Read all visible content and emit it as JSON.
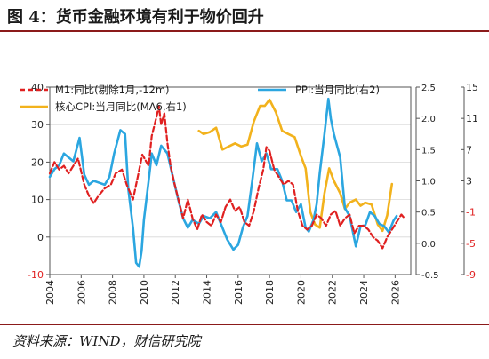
{
  "figure": {
    "title": "图 4：货币金融环境有利于物价回升",
    "source": "资料来源：WIND，财信研究院"
  },
  "chart_data": {
    "type": "line",
    "legend": [
      {
        "name": "M1:同比(剔除1月,-12m)",
        "color": "#e02020",
        "style": "dashed",
        "axis": "left"
      },
      {
        "name": "PPI:当月同比(右2)",
        "color": "#2ba6e0",
        "style": "solid",
        "axis": "right2"
      },
      {
        "name": "核心CPI:当月同比(MA6,右1)",
        "color": "#f2b21c",
        "style": "solid",
        "axis": "right1"
      }
    ],
    "x_ticks": [
      "2004",
      "2006",
      "2008",
      "2010",
      "2012",
      "2014",
      "2016",
      "2018",
      "2020",
      "2022",
      "2024",
      "2026"
    ],
    "x_range": [
      2004,
      2027
    ],
    "axes": {
      "left": {
        "min": -10,
        "max": 40,
        "ticks": [
          "-10",
          "0",
          "10",
          "20",
          "30",
          "40"
        ],
        "neg_color": "#e02020"
      },
      "right1": {
        "min": -0.5,
        "max": 2.5,
        "ticks": [
          "-0.5",
          "0.0",
          "0.5",
          "1.0",
          "1.5",
          "2.0",
          "2.5"
        ]
      },
      "right2": {
        "min": -9,
        "max": 15,
        "ticks": [
          "-9",
          "-5",
          "-1",
          "3",
          "7",
          "11",
          "15"
        ],
        "neg_color": "#e02020"
      }
    },
    "series": {
      "m1": [
        [
          2004.0,
          17
        ],
        [
          2004.3,
          20
        ],
        [
          2004.6,
          18
        ],
        [
          2004.9,
          19
        ],
        [
          2005.2,
          17
        ],
        [
          2005.5,
          19
        ],
        [
          2005.8,
          21
        ],
        [
          2006.2,
          14
        ],
        [
          2006.5,
          11
        ],
        [
          2006.8,
          9
        ],
        [
          2007.1,
          11
        ],
        [
          2007.5,
          13
        ],
        [
          2007.9,
          14
        ],
        [
          2008.2,
          17
        ],
        [
          2008.6,
          18
        ],
        [
          2008.9,
          14
        ],
        [
          2009.3,
          10
        ],
        [
          2009.6,
          16
        ],
        [
          2009.9,
          22
        ],
        [
          2010.3,
          19
        ],
        [
          2010.5,
          27
        ],
        [
          2010.8,
          32
        ],
        [
          2010.95,
          35
        ],
        [
          2011.1,
          30
        ],
        [
          2011.3,
          33
        ],
        [
          2011.5,
          25
        ],
        [
          2011.7,
          19
        ],
        [
          2011.9,
          15
        ],
        [
          2012.2,
          10
        ],
        [
          2012.5,
          5
        ],
        [
          2012.8,
          10
        ],
        [
          2013.1,
          5
        ],
        [
          2013.4,
          2
        ],
        [
          2013.7,
          6
        ],
        [
          2014.0,
          4
        ],
        [
          2014.3,
          3
        ],
        [
          2014.6,
          6
        ],
        [
          2014.9,
          4
        ],
        [
          2015.2,
          8
        ],
        [
          2015.5,
          10
        ],
        [
          2015.8,
          7
        ],
        [
          2016.1,
          8
        ],
        [
          2016.4,
          4
        ],
        [
          2016.7,
          3
        ],
        [
          2017.0,
          7
        ],
        [
          2017.3,
          13
        ],
        [
          2017.6,
          18
        ],
        [
          2017.8,
          24
        ],
        [
          2018.0,
          23
        ],
        [
          2018.3,
          18
        ],
        [
          2018.6,
          16
        ],
        [
          2018.9,
          14
        ],
        [
          2019.2,
          15
        ],
        [
          2019.5,
          14
        ],
        [
          2019.8,
          7
        ],
        [
          2020.1,
          3
        ],
        [
          2020.4,
          2
        ],
        [
          2020.7,
          3
        ],
        [
          2021.0,
          6
        ],
        [
          2021.3,
          5
        ],
        [
          2021.6,
          3
        ],
        [
          2021.9,
          6
        ],
        [
          2022.2,
          7
        ],
        [
          2022.5,
          3
        ],
        [
          2022.8,
          5
        ],
        [
          2023.1,
          6
        ],
        [
          2023.4,
          1
        ],
        [
          2023.7,
          3
        ],
        [
          2024.0,
          3
        ],
        [
          2024.3,
          2
        ],
        [
          2024.6,
          0
        ],
        [
          2024.9,
          -1
        ],
        [
          2025.2,
          -3
        ],
        [
          2025.5,
          0
        ],
        [
          2025.8,
          2
        ],
        [
          2026.1,
          4
        ],
        [
          2026.4,
          6
        ],
        [
          2026.6,
          5
        ]
      ],
      "ppi": [
        [
          2004.0,
          3.5
        ],
        [
          2004.3,
          4.5
        ],
        [
          2004.6,
          5
        ],
        [
          2004.9,
          6.5
        ],
        [
          2005.2,
          6
        ],
        [
          2005.5,
          5.5
        ],
        [
          2005.9,
          8.5
        ],
        [
          2006.2,
          3.8
        ],
        [
          2006.5,
          2.5
        ],
        [
          2006.8,
          3
        ],
        [
          2007.1,
          2.8
        ],
        [
          2007.5,
          2.5
        ],
        [
          2007.8,
          3.5
        ],
        [
          2008.1,
          6.5
        ],
        [
          2008.5,
          9.5
        ],
        [
          2008.8,
          9
        ],
        [
          2009.0,
          2
        ],
        [
          2009.3,
          -3
        ],
        [
          2009.5,
          -7.5
        ],
        [
          2009.7,
          -8.0
        ],
        [
          2009.85,
          -6
        ],
        [
          2010.0,
          -2
        ],
        [
          2010.3,
          3
        ],
        [
          2010.5,
          6.5
        ],
        [
          2010.8,
          5
        ],
        [
          2011.1,
          7.5
        ],
        [
          2011.5,
          6.5
        ],
        [
          2011.9,
          3
        ],
        [
          2012.2,
          0.5
        ],
        [
          2012.5,
          -1.8
        ],
        [
          2012.8,
          -3
        ],
        [
          2013.1,
          -2
        ],
        [
          2013.5,
          -2.5
        ],
        [
          2013.8,
          -1.5
        ],
        [
          2014.2,
          -1.8
        ],
        [
          2014.6,
          -1.0
        ],
        [
          2014.9,
          -2.5
        ],
        [
          2015.3,
          -4.5
        ],
        [
          2015.7,
          -5.8
        ],
        [
          2016.0,
          -5.2
        ],
        [
          2016.3,
          -3
        ],
        [
          2016.6,
          -1.5
        ],
        [
          2016.9,
          3
        ],
        [
          2017.2,
          7.8
        ],
        [
          2017.5,
          5.5
        ],
        [
          2017.8,
          6.5
        ],
        [
          2018.1,
          4.5
        ],
        [
          2018.5,
          4.5
        ],
        [
          2018.8,
          3
        ],
        [
          2019.1,
          0.5
        ],
        [
          2019.4,
          0.5
        ],
        [
          2019.7,
          -1.0
        ],
        [
          2020.0,
          0
        ],
        [
          2020.3,
          -3
        ],
        [
          2020.5,
          -3.5
        ],
        [
          2020.8,
          -2
        ],
        [
          2021.0,
          0
        ],
        [
          2021.2,
          4
        ],
        [
          2021.5,
          9
        ],
        [
          2021.75,
          13.5
        ],
        [
          2021.9,
          11
        ],
        [
          2022.1,
          9
        ],
        [
          2022.5,
          6
        ],
        [
          2022.8,
          -0.5
        ],
        [
          2023.1,
          -1.5
        ],
        [
          2023.5,
          -5.4
        ],
        [
          2023.8,
          -2.8
        ],
        [
          2024.1,
          -2.7
        ],
        [
          2024.4,
          -1
        ],
        [
          2024.7,
          -1.5
        ],
        [
          2025.0,
          -2.5
        ],
        [
          2025.3,
          -2.8
        ],
        [
          2025.6,
          -3.6
        ],
        [
          2025.9,
          -2.1
        ],
        [
          2026.1,
          -1.5
        ]
      ],
      "core_cpi": [
        [
          2013.5,
          1.8
        ],
        [
          2013.8,
          1.75
        ],
        [
          2014.2,
          1.78
        ],
        [
          2014.6,
          1.85
        ],
        [
          2015.0,
          1.5
        ],
        [
          2015.4,
          1.55
        ],
        [
          2015.8,
          1.6
        ],
        [
          2016.2,
          1.55
        ],
        [
          2016.6,
          1.58
        ],
        [
          2017.0,
          1.95
        ],
        [
          2017.4,
          2.2
        ],
        [
          2017.7,
          2.2
        ],
        [
          2018.0,
          2.3
        ],
        [
          2018.4,
          2.1
        ],
        [
          2018.8,
          1.8
        ],
        [
          2019.2,
          1.75
        ],
        [
          2019.6,
          1.7
        ],
        [
          2020.0,
          1.4
        ],
        [
          2020.3,
          1.2
        ],
        [
          2020.6,
          0.5
        ],
        [
          2020.9,
          0.3
        ],
        [
          2021.2,
          0.25
        ],
        [
          2021.5,
          0.8
        ],
        [
          2021.8,
          1.2
        ],
        [
          2022.1,
          1.0
        ],
        [
          2022.5,
          0.8
        ],
        [
          2022.8,
          0.55
        ],
        [
          2023.1,
          0.65
        ],
        [
          2023.5,
          0.7
        ],
        [
          2023.8,
          0.6
        ],
        [
          2024.1,
          0.65
        ],
        [
          2024.5,
          0.62
        ],
        [
          2024.9,
          0.3
        ],
        [
          2025.2,
          0.2
        ],
        [
          2025.5,
          0.45
        ],
        [
          2025.8,
          0.95
        ]
      ]
    }
  }
}
